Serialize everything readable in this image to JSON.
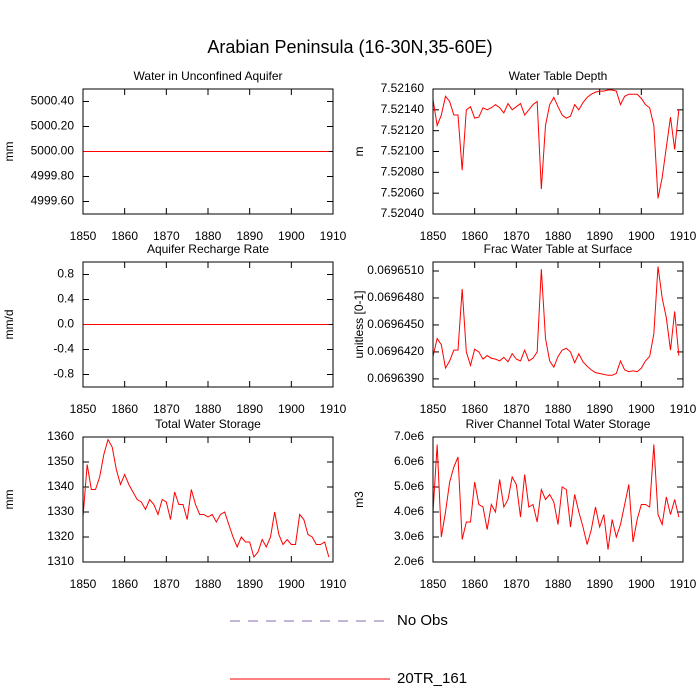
{
  "title": "Arabian Peninsula (16-30N,35-60E)",
  "chart_data": [
    {
      "type": "line",
      "title": "Water in Unconfined Aquifer",
      "ylabel": "mm",
      "x": [
        1850,
        1851,
        1852,
        1853,
        1854,
        1855,
        1856,
        1857,
        1858,
        1859,
        1860,
        1861,
        1862,
        1863,
        1864,
        1865,
        1866,
        1867,
        1868,
        1869,
        1870,
        1871,
        1872,
        1873,
        1874,
        1875,
        1876,
        1877,
        1878,
        1879,
        1880,
        1881,
        1882,
        1883,
        1884,
        1885,
        1886,
        1887,
        1888,
        1889,
        1890,
        1891,
        1892,
        1893,
        1894,
        1895,
        1896,
        1897,
        1898,
        1899,
        1900,
        1901,
        1902,
        1903,
        1904,
        1905,
        1906,
        1907,
        1908,
        1909
      ],
      "xlim": [
        1850,
        1910
      ],
      "xticks": [
        1850,
        1860,
        1870,
        1880,
        1890,
        1900,
        1910
      ],
      "ylim": [
        4999.5,
        5000.5
      ],
      "yticks": [
        {
          "value": 4999.6,
          "label": "4999.60"
        },
        {
          "value": 4999.8,
          "label": "4999.80"
        },
        {
          "value": 5000,
          "label": "5000.00"
        },
        {
          "value": 5000.2,
          "label": "5000.20"
        },
        {
          "value": 5000.4,
          "label": "5000.40"
        }
      ],
      "series": [
        {
          "color": "#ff0000",
          "values": [
            5000,
            5000,
            5000,
            5000,
            5000,
            5000,
            5000,
            5000,
            5000,
            5000,
            5000,
            5000,
            5000,
            5000,
            5000,
            5000,
            5000,
            5000,
            5000,
            5000,
            5000,
            5000,
            5000,
            5000,
            5000,
            5000,
            5000,
            5000,
            5000,
            5000,
            5000,
            5000,
            5000,
            5000,
            5000,
            5000,
            5000,
            5000,
            5000,
            5000,
            5000,
            5000,
            5000,
            5000,
            5000,
            5000,
            5000,
            5000,
            5000,
            5000,
            5000,
            5000,
            5000,
            5000,
            5000,
            5000,
            5000,
            5000,
            5000,
            5000
          ]
        }
      ]
    },
    {
      "type": "line",
      "title": "Water Table Depth",
      "ylabel": "m",
      "x": [
        1850,
        1851,
        1852,
        1853,
        1854,
        1855,
        1856,
        1857,
        1858,
        1859,
        1860,
        1861,
        1862,
        1863,
        1864,
        1865,
        1866,
        1867,
        1868,
        1869,
        1870,
        1871,
        1872,
        1873,
        1874,
        1875,
        1876,
        1877,
        1878,
        1879,
        1880,
        1881,
        1882,
        1883,
        1884,
        1885,
        1886,
        1887,
        1888,
        1889,
        1890,
        1891,
        1892,
        1893,
        1894,
        1895,
        1896,
        1897,
        1898,
        1899,
        1900,
        1901,
        1902,
        1903,
        1904,
        1905,
        1906,
        1907,
        1908,
        1909
      ],
      "xlim": [
        1850,
        1910
      ],
      "xticks": [
        1850,
        1860,
        1870,
        1880,
        1890,
        1900,
        1910
      ],
      "ylim": [
        7.5204,
        7.5216
      ],
      "yticks": [
        {
          "value": 7.5204,
          "label": "7.52040"
        },
        {
          "value": 7.5206,
          "label": "7.52060"
        },
        {
          "value": 7.5208,
          "label": "7.52080"
        },
        {
          "value": 7.521,
          "label": "7.52100"
        },
        {
          "value": 7.5212,
          "label": "7.52120"
        },
        {
          "value": 7.5214,
          "label": "7.52140"
        },
        {
          "value": 7.5216,
          "label": "7.52160"
        }
      ],
      "series": [
        {
          "color": "#ff0000",
          "values": [
            7.5215,
            7.52125,
            7.52135,
            7.52153,
            7.52148,
            7.52135,
            7.52135,
            7.52082,
            7.5214,
            7.52143,
            7.52132,
            7.52133,
            7.52142,
            7.5214,
            7.52142,
            7.52145,
            7.52142,
            7.52137,
            7.52146,
            7.5214,
            7.52143,
            7.52146,
            7.52135,
            7.5214,
            7.52145,
            7.52148,
            7.52064,
            7.52125,
            7.52145,
            7.52152,
            7.52143,
            7.52135,
            7.52132,
            7.52134,
            7.52145,
            7.5214,
            7.52147,
            7.52152,
            7.52155,
            7.52157,
            7.52158,
            7.52158,
            7.52159,
            7.52159,
            7.52158,
            7.52145,
            7.52153,
            7.52155,
            7.52155,
            7.52155,
            7.52151,
            7.52145,
            7.52142,
            7.52125,
            7.52055,
            7.52075,
            7.52104,
            7.52133,
            7.52102,
            7.5214
          ]
        }
      ]
    },
    {
      "type": "line",
      "title": "Aquifer Recharge Rate",
      "ylabel": "mm/d",
      "x": [
        1850,
        1851,
        1852,
        1853,
        1854,
        1855,
        1856,
        1857,
        1858,
        1859,
        1860,
        1861,
        1862,
        1863,
        1864,
        1865,
        1866,
        1867,
        1868,
        1869,
        1870,
        1871,
        1872,
        1873,
        1874,
        1875,
        1876,
        1877,
        1878,
        1879,
        1880,
        1881,
        1882,
        1883,
        1884,
        1885,
        1886,
        1887,
        1888,
        1889,
        1890,
        1891,
        1892,
        1893,
        1894,
        1895,
        1896,
        1897,
        1898,
        1899,
        1900,
        1901,
        1902,
        1903,
        1904,
        1905,
        1906,
        1907,
        1908,
        1909
      ],
      "xlim": [
        1850,
        1910
      ],
      "xticks": [
        1850,
        1860,
        1870,
        1880,
        1890,
        1900,
        1910
      ],
      "ylim": [
        -1,
        1
      ],
      "yticks": [
        -0.8,
        -0.4,
        {
          "value": 0,
          "label": "0.0"
        },
        0.4,
        0.8
      ],
      "series": [
        {
          "color": "#ff0000",
          "values": [
            0,
            0,
            0,
            0,
            0,
            0,
            0,
            0,
            0,
            0,
            0,
            0,
            0,
            0,
            0,
            0,
            0,
            0,
            0,
            0,
            0,
            0,
            0,
            0,
            0,
            0,
            0,
            0,
            0,
            0,
            0,
            0,
            0,
            0,
            0,
            0,
            0,
            0,
            0,
            0,
            0,
            0,
            0,
            0,
            0,
            0,
            0,
            0,
            0,
            0,
            0,
            0,
            0,
            0,
            0,
            0,
            0,
            0,
            0,
            0
          ]
        }
      ]
    },
    {
      "type": "line",
      "title": "Frac Water Table at Surface",
      "ylabel": "unitless [0-1]",
      "x": [
        1850,
        1851,
        1852,
        1853,
        1854,
        1855,
        1856,
        1857,
        1858,
        1859,
        1860,
        1861,
        1862,
        1863,
        1864,
        1865,
        1866,
        1867,
        1868,
        1869,
        1870,
        1871,
        1872,
        1873,
        1874,
        1875,
        1876,
        1877,
        1878,
        1879,
        1880,
        1881,
        1882,
        1883,
        1884,
        1885,
        1886,
        1887,
        1888,
        1889,
        1890,
        1891,
        1892,
        1893,
        1894,
        1895,
        1896,
        1897,
        1898,
        1899,
        1900,
        1901,
        1902,
        1903,
        1904,
        1905,
        1906,
        1907,
        1908,
        1909
      ],
      "xlim": [
        1850,
        1910
      ],
      "xticks": [
        1850,
        1860,
        1870,
        1880,
        1890,
        1900,
        1910
      ],
      "ylim": [
        0.0696381,
        0.069652
      ],
      "yticks": [
        {
          "value": 0.069639,
          "label": "0.0696390"
        },
        {
          "value": 0.069642,
          "label": "0.0696420"
        },
        {
          "value": 0.069645,
          "label": "0.0696450"
        },
        {
          "value": 0.069648,
          "label": "0.0696480"
        },
        {
          "value": 0.069651,
          "label": "0.0696510"
        }
      ],
      "series": [
        {
          "color": "#ff0000",
          "values": [
            0.0696415,
            0.0696435,
            0.0696428,
            0.0696402,
            0.069641,
            0.0696422,
            0.0696422,
            0.069649,
            0.069642,
            0.0696405,
            0.0696423,
            0.069642,
            0.0696412,
            0.0696416,
            0.0696413,
            0.0696412,
            0.069641,
            0.0696414,
            0.0696409,
            0.0696418,
            0.0696412,
            0.069641,
            0.0696422,
            0.069641,
            0.0696413,
            0.069642,
            0.0696512,
            0.0696435,
            0.069641,
            0.0696403,
            0.0696415,
            0.0696422,
            0.0696424,
            0.069642,
            0.0696408,
            0.0696418,
            0.0696409,
            0.0696404,
            0.06964,
            0.0696397,
            0.0696396,
            0.0696395,
            0.0696394,
            0.0696394,
            0.0696396,
            0.069641,
            0.06964,
            0.0696398,
            0.0696399,
            0.0696398,
            0.0696402,
            0.069641,
            0.0696415,
            0.069644,
            0.0696515,
            0.069648,
            0.0696458,
            0.0696422,
            0.0696465,
            0.0696416
          ]
        }
      ]
    },
    {
      "type": "line",
      "title": "Total Water Storage",
      "ylabel": "mm",
      "x": [
        1850,
        1851,
        1852,
        1853,
        1854,
        1855,
        1856,
        1857,
        1858,
        1859,
        1860,
        1861,
        1862,
        1863,
        1864,
        1865,
        1866,
        1867,
        1868,
        1869,
        1870,
        1871,
        1872,
        1873,
        1874,
        1875,
        1876,
        1877,
        1878,
        1879,
        1880,
        1881,
        1882,
        1883,
        1884,
        1885,
        1886,
        1887,
        1888,
        1889,
        1890,
        1891,
        1892,
        1893,
        1894,
        1895,
        1896,
        1897,
        1898,
        1899,
        1900,
        1901,
        1902,
        1903,
        1904,
        1905,
        1906,
        1907,
        1908,
        1909
      ],
      "xlim": [
        1850,
        1910
      ],
      "xticks": [
        1850,
        1860,
        1870,
        1880,
        1890,
        1900,
        1910
      ],
      "ylim": [
        1310,
        1360
      ],
      "yticks": [
        1310,
        1320,
        1330,
        1340,
        1350,
        1360
      ],
      "series": [
        {
          "color": "#ff0000",
          "values": [
            1328,
            1349,
            1339,
            1339,
            1344,
            1353,
            1359,
            1356,
            1347,
            1341,
            1345,
            1341,
            1338,
            1335,
            1334,
            1331,
            1335,
            1333,
            1329,
            1335,
            1334,
            1327,
            1338,
            1333,
            1333,
            1327,
            1339,
            1333,
            1329,
            1329,
            1328,
            1329,
            1326,
            1329,
            1330,
            1325,
            1320,
            1316,
            1320,
            1318,
            1318,
            1312,
            1314,
            1319,
            1316,
            1320,
            1330,
            1321,
            1317,
            1319,
            1317,
            1317,
            1329,
            1327,
            1321,
            1320,
            1317,
            1317,
            1318,
            1312
          ]
        }
      ]
    },
    {
      "type": "line",
      "title": "River Channel Total Water Storage",
      "ylabel": "m3",
      "x": [
        1850,
        1851,
        1852,
        1853,
        1854,
        1855,
        1856,
        1857,
        1858,
        1859,
        1860,
        1861,
        1862,
        1863,
        1864,
        1865,
        1866,
        1867,
        1868,
        1869,
        1870,
        1871,
        1872,
        1873,
        1874,
        1875,
        1876,
        1877,
        1878,
        1879,
        1880,
        1881,
        1882,
        1883,
        1884,
        1885,
        1886,
        1887,
        1888,
        1889,
        1890,
        1891,
        1892,
        1893,
        1894,
        1895,
        1896,
        1897,
        1898,
        1899,
        1900,
        1901,
        1902,
        1903,
        1904,
        1905,
        1906,
        1907,
        1908,
        1909
      ],
      "xlim": [
        1850,
        1910
      ],
      "xticks": [
        1850,
        1860,
        1870,
        1880,
        1890,
        1900,
        1910
      ],
      "ylim": [
        2000000,
        7000000
      ],
      "yticks": [
        {
          "value": 2000000,
          "label": "2.0e6"
        },
        {
          "value": 3000000,
          "label": "3.0e6"
        },
        {
          "value": 4000000,
          "label": "4.0e6"
        },
        {
          "value": 5000000,
          "label": "5.0e6"
        },
        {
          "value": 6000000,
          "label": "6.0e6"
        },
        {
          "value": 7000000,
          "label": "7.0e6"
        }
      ],
      "series": [
        {
          "color": "#ff0000",
          "values": [
            4000000,
            6700000,
            3000000,
            4000000,
            5200000,
            5800000,
            6200000,
            2900000,
            3600000,
            3600000,
            5200000,
            4300000,
            4200000,
            3300000,
            4300000,
            4000000,
            5300000,
            4200000,
            4500000,
            5400000,
            5100000,
            3800000,
            5500000,
            4200000,
            4300000,
            3600000,
            4900000,
            4500000,
            4700000,
            4400000,
            3500000,
            5000000,
            4900000,
            3400000,
            4700000,
            4000000,
            3400000,
            2700000,
            3300000,
            4200000,
            3400000,
            3900000,
            2500000,
            3700000,
            3000000,
            3500000,
            4300000,
            5100000,
            2800000,
            3700000,
            4300000,
            4300000,
            4200000,
            6700000,
            3900000,
            3500000,
            4600000,
            3900000,
            4500000,
            3800000
          ]
        }
      ]
    }
  ],
  "legend": [
    {
      "name": "No Obs",
      "color": "#8a6ab0",
      "dash": true
    },
    {
      "name": "20TR_161",
      "color": "#ff0000",
      "dash": false
    }
  ]
}
